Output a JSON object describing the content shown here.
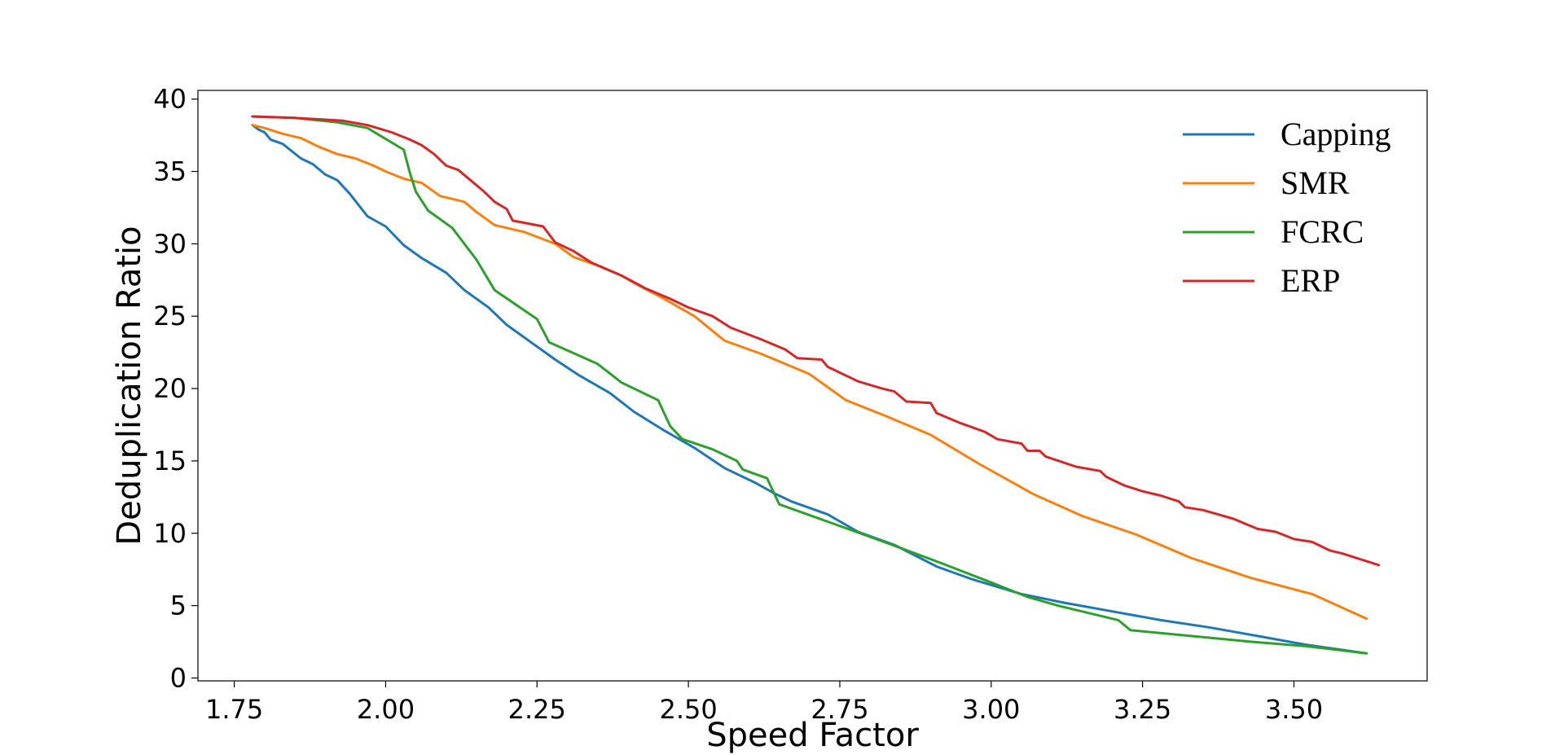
{
  "chart_data": {
    "type": "line",
    "title": "",
    "xlabel": "Speed Factor",
    "ylabel": "Deduplication Ratio",
    "xlim": [
      1.69,
      3.72
    ],
    "ylim": [
      -0.2,
      40.6
    ],
    "xticks": [
      1.75,
      2.0,
      2.25,
      2.5,
      2.75,
      3.0,
      3.25,
      3.5
    ],
    "xtick_labels": [
      "1.75",
      "2.00",
      "2.25",
      "2.50",
      "2.75",
      "3.00",
      "3.25",
      "3.50"
    ],
    "yticks": [
      0,
      5,
      10,
      15,
      20,
      25,
      30,
      35,
      40
    ],
    "ytick_labels": [
      "0",
      "5",
      "10",
      "15",
      "20",
      "25",
      "30",
      "35",
      "40"
    ],
    "grid": false,
    "legend_position": "top-right",
    "series": [
      {
        "name": "Capping",
        "color": "#1f77b4",
        "points": [
          [
            1.78,
            38.2
          ],
          [
            1.79,
            37.9
          ],
          [
            1.8,
            37.7
          ],
          [
            1.81,
            37.2
          ],
          [
            1.83,
            36.9
          ],
          [
            1.86,
            35.9
          ],
          [
            1.88,
            35.5
          ],
          [
            1.9,
            34.8
          ],
          [
            1.92,
            34.4
          ],
          [
            1.94,
            33.5
          ],
          [
            1.97,
            31.9
          ],
          [
            2.0,
            31.2
          ],
          [
            2.03,
            29.9
          ],
          [
            2.06,
            29.0
          ],
          [
            2.1,
            28.0
          ],
          [
            2.13,
            26.8
          ],
          [
            2.17,
            25.6
          ],
          [
            2.2,
            24.4
          ],
          [
            2.24,
            23.2
          ],
          [
            2.28,
            22.0
          ],
          [
            2.32,
            20.9
          ],
          [
            2.37,
            19.7
          ],
          [
            2.41,
            18.4
          ],
          [
            2.46,
            17.1
          ],
          [
            2.51,
            15.9
          ],
          [
            2.56,
            14.5
          ],
          [
            2.61,
            13.5
          ],
          [
            2.64,
            12.8
          ],
          [
            2.67,
            12.2
          ],
          [
            2.73,
            11.3
          ],
          [
            2.78,
            10.1
          ],
          [
            2.84,
            9.2
          ],
          [
            2.91,
            7.7
          ],
          [
            2.97,
            6.8
          ],
          [
            3.05,
            5.8
          ],
          [
            3.12,
            5.2
          ],
          [
            3.2,
            4.6
          ],
          [
            3.28,
            4.0
          ],
          [
            3.36,
            3.5
          ],
          [
            3.44,
            2.9
          ],
          [
            3.52,
            2.3
          ],
          [
            3.62,
            1.7
          ]
        ]
      },
      {
        "name": "SMR",
        "color": "#ff7f0e",
        "points": [
          [
            1.78,
            38.2
          ],
          [
            1.8,
            38.0
          ],
          [
            1.83,
            37.6
          ],
          [
            1.86,
            37.3
          ],
          [
            1.89,
            36.7
          ],
          [
            1.92,
            36.2
          ],
          [
            1.95,
            35.9
          ],
          [
            1.98,
            35.4
          ],
          [
            2.0,
            35.0
          ],
          [
            2.03,
            34.5
          ],
          [
            2.06,
            34.2
          ],
          [
            2.09,
            33.3
          ],
          [
            2.13,
            32.9
          ],
          [
            2.15,
            32.2
          ],
          [
            2.18,
            31.3
          ],
          [
            2.23,
            30.8
          ],
          [
            2.28,
            30.0
          ],
          [
            2.31,
            29.1
          ],
          [
            2.35,
            28.5
          ],
          [
            2.39,
            27.8
          ],
          [
            2.41,
            27.3
          ],
          [
            2.46,
            26.2
          ],
          [
            2.51,
            25.0
          ],
          [
            2.56,
            23.3
          ],
          [
            2.62,
            22.4
          ],
          [
            2.7,
            21.0
          ],
          [
            2.76,
            19.2
          ],
          [
            2.82,
            18.2
          ],
          [
            2.9,
            16.8
          ],
          [
            2.98,
            14.8
          ],
          [
            3.07,
            12.7
          ],
          [
            3.15,
            11.2
          ],
          [
            3.24,
            9.9
          ],
          [
            3.33,
            8.3
          ],
          [
            3.43,
            6.9
          ],
          [
            3.53,
            5.8
          ],
          [
            3.62,
            4.1
          ]
        ]
      },
      {
        "name": "FCRC",
        "color": "#2ca02c",
        "points": [
          [
            1.78,
            38.8
          ],
          [
            1.85,
            38.7
          ],
          [
            1.92,
            38.4
          ],
          [
            1.97,
            38.0
          ],
          [
            2.03,
            36.5
          ],
          [
            2.04,
            34.9
          ],
          [
            2.05,
            33.6
          ],
          [
            2.07,
            32.3
          ],
          [
            2.11,
            31.1
          ],
          [
            2.15,
            28.9
          ],
          [
            2.18,
            26.8
          ],
          [
            2.25,
            24.8
          ],
          [
            2.27,
            23.2
          ],
          [
            2.35,
            21.7
          ],
          [
            2.39,
            20.4
          ],
          [
            2.45,
            19.2
          ],
          [
            2.47,
            17.4
          ],
          [
            2.49,
            16.5
          ],
          [
            2.54,
            15.8
          ],
          [
            2.58,
            15.0
          ],
          [
            2.59,
            14.4
          ],
          [
            2.63,
            13.8
          ],
          [
            2.65,
            12.0
          ],
          [
            2.73,
            10.8
          ],
          [
            2.83,
            9.3
          ],
          [
            2.92,
            7.9
          ],
          [
            3.0,
            6.6
          ],
          [
            3.06,
            5.6
          ],
          [
            3.11,
            5.0
          ],
          [
            3.21,
            4.0
          ],
          [
            3.23,
            3.3
          ],
          [
            3.33,
            2.9
          ],
          [
            3.43,
            2.5
          ],
          [
            3.52,
            2.2
          ],
          [
            3.62,
            1.7
          ]
        ]
      },
      {
        "name": "ERP",
        "color": "#d62728",
        "points": [
          [
            1.78,
            38.8
          ],
          [
            1.85,
            38.7
          ],
          [
            1.93,
            38.5
          ],
          [
            1.97,
            38.2
          ],
          [
            2.01,
            37.7
          ],
          [
            2.04,
            37.2
          ],
          [
            2.06,
            36.8
          ],
          [
            2.08,
            36.2
          ],
          [
            2.1,
            35.4
          ],
          [
            2.12,
            35.1
          ],
          [
            2.14,
            34.4
          ],
          [
            2.16,
            33.7
          ],
          [
            2.18,
            32.9
          ],
          [
            2.2,
            32.4
          ],
          [
            2.21,
            31.6
          ],
          [
            2.26,
            31.2
          ],
          [
            2.28,
            30.1
          ],
          [
            2.31,
            29.5
          ],
          [
            2.34,
            28.7
          ],
          [
            2.39,
            27.8
          ],
          [
            2.43,
            26.9
          ],
          [
            2.47,
            26.2
          ],
          [
            2.5,
            25.6
          ],
          [
            2.54,
            25.0
          ],
          [
            2.57,
            24.2
          ],
          [
            2.62,
            23.4
          ],
          [
            2.66,
            22.7
          ],
          [
            2.68,
            22.1
          ],
          [
            2.72,
            22.0
          ],
          [
            2.73,
            21.5
          ],
          [
            2.78,
            20.5
          ],
          [
            2.82,
            20.0
          ],
          [
            2.84,
            19.8
          ],
          [
            2.86,
            19.1
          ],
          [
            2.9,
            19.0
          ],
          [
            2.91,
            18.3
          ],
          [
            2.95,
            17.6
          ],
          [
            2.99,
            17.0
          ],
          [
            3.01,
            16.5
          ],
          [
            3.05,
            16.2
          ],
          [
            3.06,
            15.7
          ],
          [
            3.08,
            15.7
          ],
          [
            3.09,
            15.3
          ],
          [
            3.14,
            14.6
          ],
          [
            3.18,
            14.3
          ],
          [
            3.19,
            13.9
          ],
          [
            3.22,
            13.3
          ],
          [
            3.25,
            12.9
          ],
          [
            3.28,
            12.6
          ],
          [
            3.31,
            12.2
          ],
          [
            3.32,
            11.8
          ],
          [
            3.35,
            11.6
          ],
          [
            3.4,
            11.0
          ],
          [
            3.44,
            10.3
          ],
          [
            3.47,
            10.1
          ],
          [
            3.5,
            9.6
          ],
          [
            3.53,
            9.4
          ],
          [
            3.56,
            8.8
          ],
          [
            3.58,
            8.6
          ],
          [
            3.64,
            7.8
          ]
        ]
      }
    ]
  }
}
